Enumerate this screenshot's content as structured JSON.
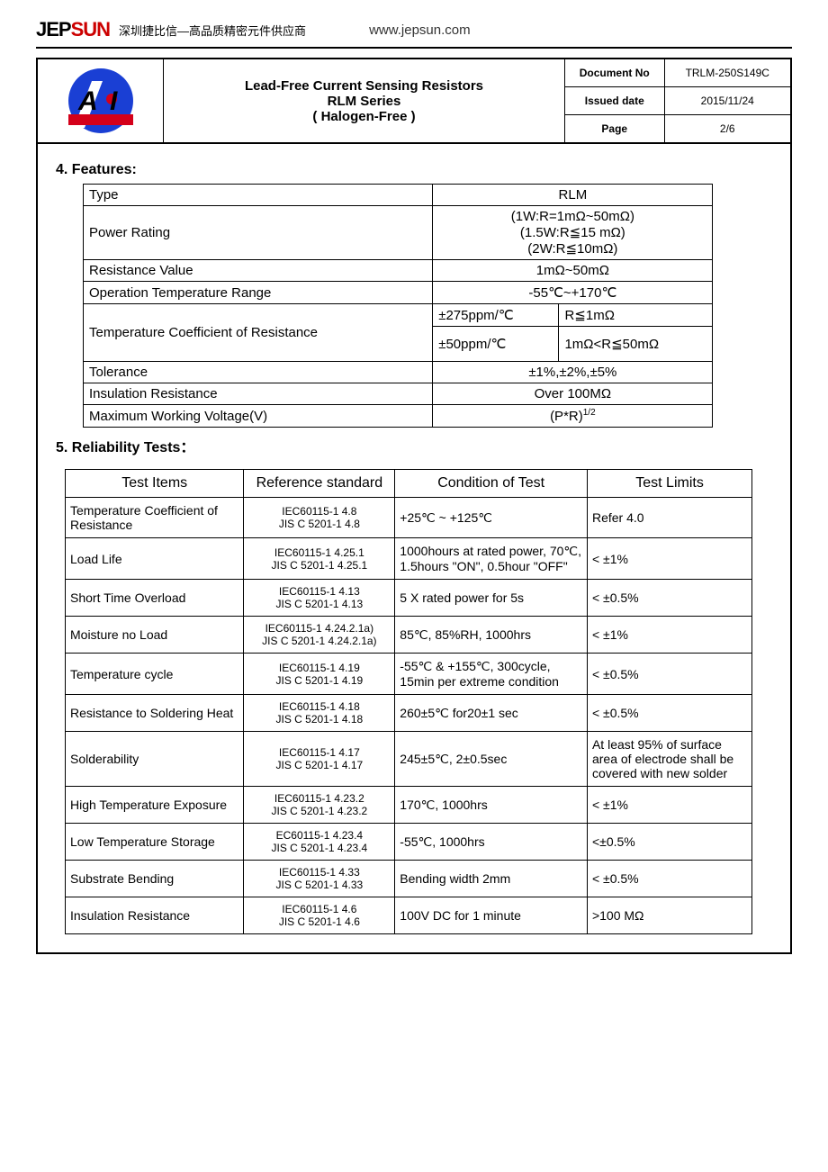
{
  "brand": {
    "logo_black": "JEP",
    "logo_red": "SUN",
    "tagline": "深圳捷比信—高品质精密元件供应商",
    "url": "www.jepsun.com"
  },
  "title": {
    "line1": "Lead-Free Current Sensing Resistors",
    "line2": "RLM Series",
    "line3": "( Halogen-Free )"
  },
  "meta": {
    "doc_no_label": "Document No",
    "doc_no": "TRLM-250S149C",
    "issued_label": "Issued date",
    "issued": "2015/11/24",
    "page_label": "Page",
    "page": "2/6"
  },
  "section4_title": "4. Features:",
  "features": {
    "h_type": "Type",
    "type_val": "RLM",
    "h_power": "Power Rating",
    "power_l1": "(1W:R=1mΩ~50mΩ)",
    "power_l2": "(1.5W:R≦15 mΩ)",
    "power_l3": "(2W:R≦10mΩ)",
    "h_res": "Resistance Value",
    "res_val": "1mΩ~50mΩ",
    "h_optemp": "Operation Temperature Range",
    "optemp_val": "-55℃~+170℃",
    "h_tcr": "Temperature Coefficient of Resistance",
    "tcr_a1": "±275ppm/℃",
    "tcr_a2": "R≦1mΩ",
    "tcr_b1": "±50ppm/℃",
    "tcr_b2": "1mΩ<R≦50mΩ",
    "h_tol": "Tolerance",
    "tol_val": "±1%,±2%,±5%",
    "h_ins": "Insulation Resistance",
    "ins_val": "Over 100MΩ",
    "h_maxv": "Maximum Working Voltage(V)",
    "maxv_val": "(P*R)"
  },
  "section5_title": "5. Reliability Tests：",
  "rel_headers": {
    "c1": "Test Items",
    "c2": "Reference standard",
    "c3": "Condition of Test",
    "c4": "Test Limits"
  },
  "rel": [
    {
      "item": "Temperature Coefficient of Resistance",
      "ref": "IEC60115-1 4.8\nJIS C 5201-1 4.8",
      "cond": "+25℃ ~ +125℃",
      "lim": "Refer 4.0"
    },
    {
      "item": "Load Life",
      "ref": "IEC60115-1 4.25.1\nJIS C 5201-1 4.25.1",
      "cond": "1000hours at rated power, 70℃, 1.5hours \"ON\", 0.5hour \"OFF\"",
      "lim": "< ±1%"
    },
    {
      "item": "Short Time Overload",
      "ref": "IEC60115-1 4.13\nJIS C 5201-1 4.13",
      "cond": "5 X rated power for 5s",
      "lim": "< ±0.5%"
    },
    {
      "item": "Moisture no Load",
      "ref": "IEC60115-1 4.24.2.1a)\nJIS C 5201-1 4.24.2.1a)",
      "cond": "85℃, 85%RH, 1000hrs",
      "lim": "< ±1%"
    },
    {
      "item": "Temperature cycle",
      "ref": "IEC60115-1 4.19\nJIS C 5201-1 4.19",
      "cond": "-55℃ & +155℃, 300cycle, 15min per extreme condition",
      "lim": "< ±0.5%"
    },
    {
      "item": "Resistance to Soldering Heat",
      "ref": "IEC60115-1 4.18\nJIS C 5201-1 4.18",
      "cond": "260±5℃ for20±1 sec",
      "lim": "< ±0.5%"
    },
    {
      "item": "Solderability",
      "ref": "IEC60115-1 4.17\nJIS C 5201-1 4.17",
      "cond": "245±5℃, 2±0.5sec",
      "lim": "At least 95% of surface area of electrode shall be covered with new solder"
    },
    {
      "item": "High Temperature Exposure",
      "ref": "IEC60115-1 4.23.2\nJIS C 5201-1 4.23.2",
      "cond": "170℃, 1000hrs",
      "lim": "< ±1%"
    },
    {
      "item": "Low Temperature Storage",
      "ref": "EC60115-1 4.23.4\nJIS C 5201-1 4.23.4",
      "cond": "-55℃, 1000hrs",
      "lim": "<±0.5%"
    },
    {
      "item": "Substrate Bending",
      "ref": "IEC60115-1 4.33\nJIS C 5201-1 4.33",
      "cond": "Bending width 2mm",
      "lim": "< ±0.5%"
    },
    {
      "item": "Insulation Resistance",
      "ref": "IEC60115-1 4.6\nJIS C 5201-1 4.6",
      "cond": "100V DC for 1 minute",
      "lim": ">100 MΩ"
    }
  ]
}
